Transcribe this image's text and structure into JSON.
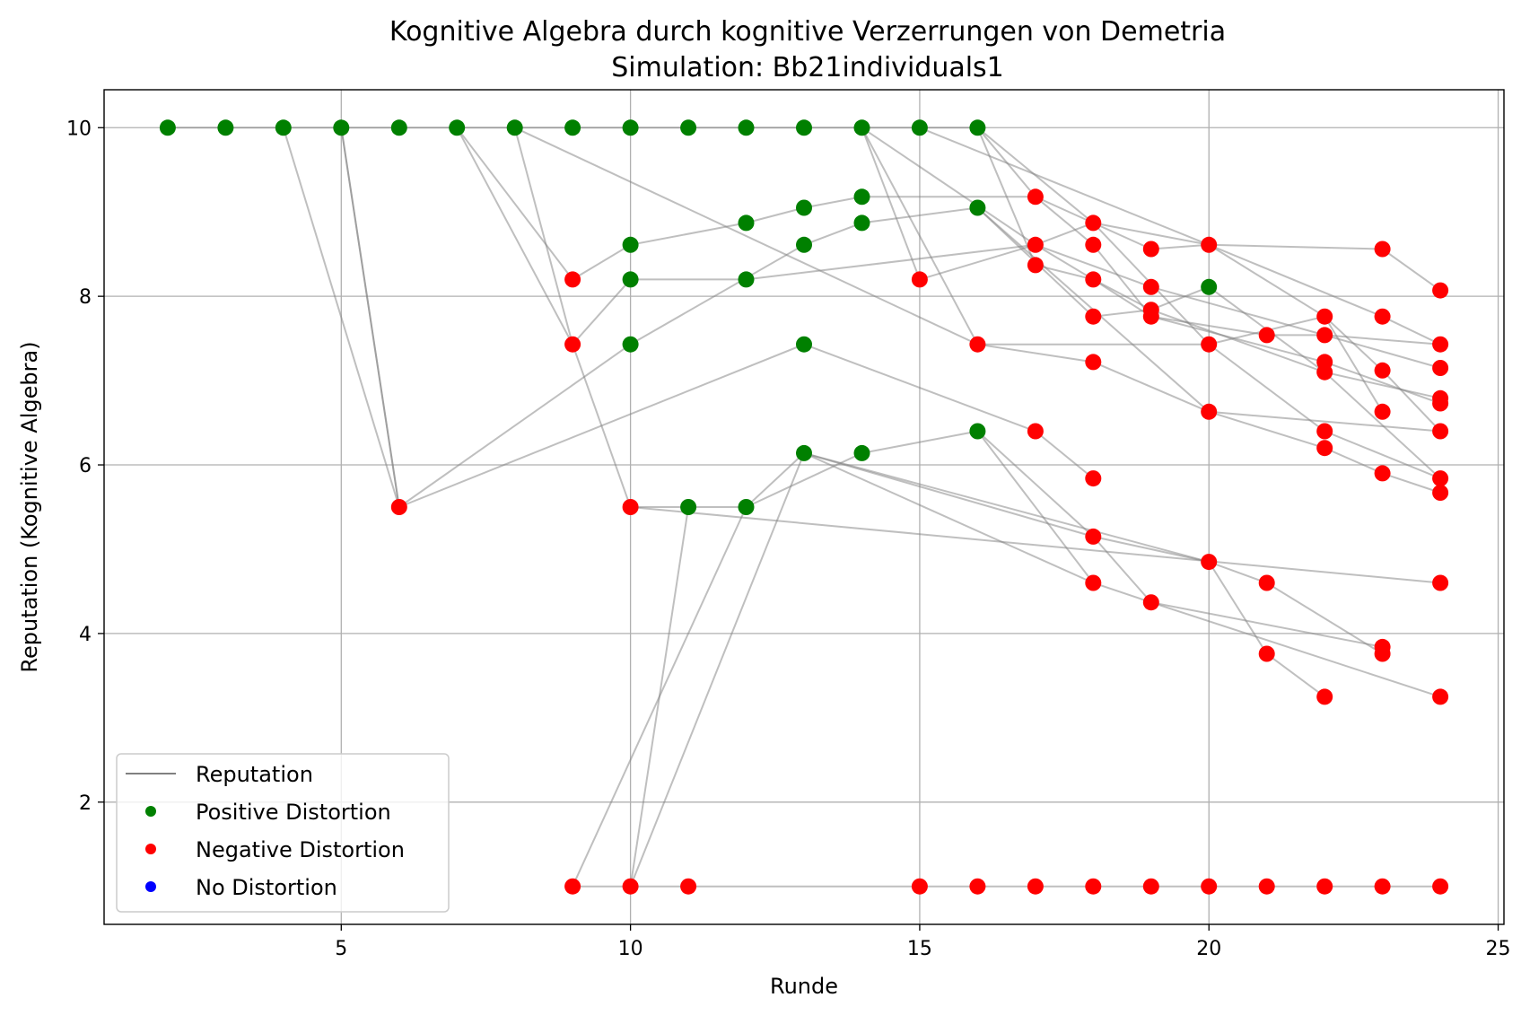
{
  "chart_data": {
    "type": "scatter",
    "title": "Kognitive Algebra durch kognitive Verzerrungen von Demetria",
    "subtitle": "Simulation: Bb21individuals1",
    "xlabel": "Runde",
    "ylabel": "Reputation (Kognitive Algebra)",
    "xlim": [
      0.9,
      25.1
    ],
    "ylim": [
      0.55,
      10.45
    ],
    "xticks": [
      5,
      10,
      15,
      20,
      25
    ],
    "yticks": [
      2,
      4,
      6,
      8,
      10
    ],
    "grid": true,
    "legend_position": "lower-left",
    "legend": [
      {
        "label": "Reputation",
        "kind": "line",
        "color": "#808080"
      },
      {
        "label": "Positive Distortion",
        "kind": "marker",
        "color": "#008000"
      },
      {
        "label": "Negative Distortion",
        "kind": "marker",
        "color": "#ff0000"
      },
      {
        "label": "No Distortion",
        "kind": "marker",
        "color": "#0000ff"
      }
    ],
    "colors": {
      "positive": "#008000",
      "negative": "#ff0000",
      "none": "#0000ff",
      "line": "#808080"
    },
    "points": [
      {
        "x": 2,
        "y": 10,
        "d": "positive"
      },
      {
        "x": 3,
        "y": 10,
        "d": "positive"
      },
      {
        "x": 4,
        "y": 10,
        "d": "positive"
      },
      {
        "x": 5,
        "y": 10,
        "d": "positive"
      },
      {
        "x": 6,
        "y": 10,
        "d": "positive"
      },
      {
        "x": 7,
        "y": 10,
        "d": "positive"
      },
      {
        "x": 8,
        "y": 10,
        "d": "positive"
      },
      {
        "x": 9,
        "y": 10,
        "d": "positive"
      },
      {
        "x": 10,
        "y": 10,
        "d": "positive"
      },
      {
        "x": 11,
        "y": 10,
        "d": "positive"
      },
      {
        "x": 12,
        "y": 10,
        "d": "positive"
      },
      {
        "x": 13,
        "y": 10,
        "d": "positive"
      },
      {
        "x": 14,
        "y": 10,
        "d": "positive"
      },
      {
        "x": 15,
        "y": 10,
        "d": "positive"
      },
      {
        "x": 16,
        "y": 10,
        "d": "positive"
      },
      {
        "x": 6,
        "y": 5.5,
        "d": "negative"
      },
      {
        "x": 9,
        "y": 8.2,
        "d": "negative"
      },
      {
        "x": 9,
        "y": 7.43,
        "d": "negative"
      },
      {
        "x": 9,
        "y": 1.0,
        "d": "negative"
      },
      {
        "x": 10,
        "y": 8.61,
        "d": "positive"
      },
      {
        "x": 10,
        "y": 8.2,
        "d": "positive"
      },
      {
        "x": 10,
        "y": 7.43,
        "d": "positive"
      },
      {
        "x": 10,
        "y": 5.5,
        "d": "negative"
      },
      {
        "x": 10,
        "y": 1.0,
        "d": "negative"
      },
      {
        "x": 11,
        "y": 5.5,
        "d": "positive"
      },
      {
        "x": 11,
        "y": 1.0,
        "d": "negative"
      },
      {
        "x": 12,
        "y": 8.87,
        "d": "positive"
      },
      {
        "x": 12,
        "y": 8.2,
        "d": "positive"
      },
      {
        "x": 12,
        "y": 5.5,
        "d": "positive"
      },
      {
        "x": 13,
        "y": 9.05,
        "d": "positive"
      },
      {
        "x": 13,
        "y": 8.61,
        "d": "positive"
      },
      {
        "x": 13,
        "y": 7.43,
        "d": "positive"
      },
      {
        "x": 13,
        "y": 6.14,
        "d": "positive"
      },
      {
        "x": 14,
        "y": 9.18,
        "d": "positive"
      },
      {
        "x": 14,
        "y": 8.87,
        "d": "positive"
      },
      {
        "x": 14,
        "y": 6.14,
        "d": "positive"
      },
      {
        "x": 15,
        "y": 8.2,
        "d": "negative"
      },
      {
        "x": 15,
        "y": 1.0,
        "d": "negative"
      },
      {
        "x": 16,
        "y": 9.05,
        "d": "positive"
      },
      {
        "x": 16,
        "y": 7.43,
        "d": "negative"
      },
      {
        "x": 16,
        "y": 6.4,
        "d": "positive"
      },
      {
        "x": 16,
        "y": 1.0,
        "d": "negative"
      },
      {
        "x": 17,
        "y": 9.18,
        "d": "negative"
      },
      {
        "x": 17,
        "y": 8.61,
        "d": "negative"
      },
      {
        "x": 17,
        "y": 8.37,
        "d": "negative"
      },
      {
        "x": 17,
        "y": 6.4,
        "d": "negative"
      },
      {
        "x": 17,
        "y": 1.0,
        "d": "negative"
      },
      {
        "x": 18,
        "y": 8.87,
        "d": "negative"
      },
      {
        "x": 18,
        "y": 8.61,
        "d": "negative"
      },
      {
        "x": 18,
        "y": 8.2,
        "d": "negative"
      },
      {
        "x": 18,
        "y": 7.76,
        "d": "negative"
      },
      {
        "x": 18,
        "y": 7.22,
        "d": "negative"
      },
      {
        "x": 18,
        "y": 5.84,
        "d": "negative"
      },
      {
        "x": 18,
        "y": 5.15,
        "d": "negative"
      },
      {
        "x": 18,
        "y": 4.6,
        "d": "negative"
      },
      {
        "x": 18,
        "y": 1.0,
        "d": "negative"
      },
      {
        "x": 19,
        "y": 8.56,
        "d": "negative"
      },
      {
        "x": 19,
        "y": 8.11,
        "d": "negative"
      },
      {
        "x": 19,
        "y": 7.84,
        "d": "negative"
      },
      {
        "x": 19,
        "y": 7.76,
        "d": "negative"
      },
      {
        "x": 19,
        "y": 4.37,
        "d": "negative"
      },
      {
        "x": 19,
        "y": 1.0,
        "d": "negative"
      },
      {
        "x": 20,
        "y": 8.61,
        "d": "negative"
      },
      {
        "x": 20,
        "y": 8.11,
        "d": "positive"
      },
      {
        "x": 20,
        "y": 7.43,
        "d": "negative"
      },
      {
        "x": 20,
        "y": 6.63,
        "d": "negative"
      },
      {
        "x": 20,
        "y": 4.85,
        "d": "negative"
      },
      {
        "x": 20,
        "y": 1.0,
        "d": "negative"
      },
      {
        "x": 21,
        "y": 7.54,
        "d": "negative"
      },
      {
        "x": 21,
        "y": 4.6,
        "d": "negative"
      },
      {
        "x": 21,
        "y": 3.76,
        "d": "negative"
      },
      {
        "x": 21,
        "y": 1.0,
        "d": "negative"
      },
      {
        "x": 22,
        "y": 7.76,
        "d": "negative"
      },
      {
        "x": 22,
        "y": 7.54,
        "d": "negative"
      },
      {
        "x": 22,
        "y": 7.22,
        "d": "negative"
      },
      {
        "x": 22,
        "y": 7.1,
        "d": "negative"
      },
      {
        "x": 22,
        "y": 6.4,
        "d": "negative"
      },
      {
        "x": 22,
        "y": 6.2,
        "d": "negative"
      },
      {
        "x": 22,
        "y": 3.25,
        "d": "negative"
      },
      {
        "x": 22,
        "y": 1.0,
        "d": "negative"
      },
      {
        "x": 23,
        "y": 8.56,
        "d": "negative"
      },
      {
        "x": 23,
        "y": 7.76,
        "d": "negative"
      },
      {
        "x": 23,
        "y": 7.12,
        "d": "negative"
      },
      {
        "x": 23,
        "y": 6.63,
        "d": "negative"
      },
      {
        "x": 23,
        "y": 5.9,
        "d": "negative"
      },
      {
        "x": 23,
        "y": 3.84,
        "d": "negative"
      },
      {
        "x": 23,
        "y": 3.76,
        "d": "negative"
      },
      {
        "x": 23,
        "y": 1.0,
        "d": "negative"
      },
      {
        "x": 24,
        "y": 8.07,
        "d": "negative"
      },
      {
        "x": 24,
        "y": 7.43,
        "d": "negative"
      },
      {
        "x": 24,
        "y": 7.15,
        "d": "negative"
      },
      {
        "x": 24,
        "y": 6.79,
        "d": "negative"
      },
      {
        "x": 24,
        "y": 6.73,
        "d": "negative"
      },
      {
        "x": 24,
        "y": 6.4,
        "d": "negative"
      },
      {
        "x": 24,
        "y": 5.84,
        "d": "negative"
      },
      {
        "x": 24,
        "y": 5.67,
        "d": "negative"
      },
      {
        "x": 24,
        "y": 4.6,
        "d": "negative"
      },
      {
        "x": 24,
        "y": 3.25,
        "d": "negative"
      },
      {
        "x": 24,
        "y": 1.0,
        "d": "negative"
      }
    ],
    "reputation_lines": [
      [
        [
          2,
          10
        ],
        [
          16,
          10
        ]
      ],
      [
        [
          4,
          10
        ],
        [
          6,
          5.5
        ],
        [
          10,
          7.43
        ],
        [
          13,
          8.61
        ],
        [
          14,
          8.87
        ],
        [
          16,
          9.05
        ],
        [
          18,
          7.76
        ],
        [
          19,
          7.84
        ],
        [
          20,
          8.11
        ],
        [
          22,
          7.1
        ],
        [
          24,
          6.79
        ]
      ],
      [
        [
          5,
          10
        ],
        [
          6,
          5.5
        ],
        [
          13,
          7.43
        ],
        [
          17,
          6.4
        ],
        [
          18,
          5.84
        ]
      ],
      [
        [
          5,
          10
        ],
        [
          6,
          5.5
        ]
      ],
      [
        [
          7,
          10
        ],
        [
          9,
          8.2
        ],
        [
          10,
          8.61
        ],
        [
          12,
          8.87
        ],
        [
          13,
          9.05
        ],
        [
          14,
          9.18
        ],
        [
          17,
          9.18
        ],
        [
          18,
          8.61
        ],
        [
          19,
          7.76
        ],
        [
          22,
          7.22
        ],
        [
          24,
          6.73
        ]
      ],
      [
        [
          7,
          10
        ],
        [
          9,
          7.43
        ],
        [
          10,
          8.2
        ],
        [
          12,
          8.2
        ],
        [
          17,
          8.61
        ],
        [
          18,
          8.2
        ],
        [
          19,
          7.84
        ],
        [
          22,
          7.1
        ],
        [
          24,
          5.84
        ]
      ],
      [
        [
          8,
          10
        ],
        [
          9,
          7.43
        ],
        [
          10,
          5.5
        ],
        [
          11,
          5.5
        ],
        [
          12,
          5.5
        ],
        [
          13,
          6.14
        ],
        [
          18,
          5.15
        ],
        [
          19,
          4.37
        ],
        [
          23,
          3.84
        ]
      ],
      [
        [
          8,
          10
        ],
        [
          16,
          7.43
        ],
        [
          18,
          7.22
        ],
        [
          20,
          6.63
        ],
        [
          22,
          6.2
        ],
        [
          23,
          5.9
        ],
        [
          24,
          5.67
        ]
      ],
      [
        [
          9,
          1.0
        ],
        [
          12,
          5.5
        ]
      ],
      [
        [
          10,
          1.0
        ],
        [
          11,
          5.5
        ]
      ],
      [
        [
          10,
          1.0
        ],
        [
          13,
          6.14
        ],
        [
          18,
          4.6
        ],
        [
          19,
          4.37
        ],
        [
          24,
          3.25
        ]
      ],
      [
        [
          10,
          5.5
        ],
        [
          24,
          4.6
        ]
      ],
      [
        [
          9,
          1.0
        ],
        [
          24,
          1.0
        ]
      ],
      [
        [
          12,
          5.5
        ],
        [
          14,
          6.14
        ],
        [
          16,
          6.4
        ],
        [
          18,
          4.6
        ]
      ],
      [
        [
          13,
          6.14
        ],
        [
          20,
          4.85
        ],
        [
          21,
          4.6
        ],
        [
          23,
          3.76
        ]
      ],
      [
        [
          14,
          10
        ],
        [
          15,
          8.2
        ],
        [
          17,
          8.61
        ],
        [
          18,
          8.87
        ],
        [
          19,
          8.56
        ],
        [
          20,
          8.61
        ],
        [
          23,
          8.56
        ],
        [
          24,
          8.07
        ]
      ],
      [
        [
          14,
          10
        ],
        [
          17,
          8.61
        ],
        [
          19,
          8.11
        ],
        [
          22,
          7.54
        ],
        [
          24,
          7.15
        ]
      ],
      [
        [
          14,
          10
        ],
        [
          16,
          7.43
        ],
        [
          20,
          7.43
        ],
        [
          22,
          6.4
        ],
        [
          24,
          5.84
        ]
      ],
      [
        [
          15,
          10
        ],
        [
          20,
          8.61
        ],
        [
          22,
          7.76
        ],
        [
          23,
          7.12
        ],
        [
          24,
          6.4
        ]
      ],
      [
        [
          16,
          10
        ],
        [
          17,
          8.37
        ],
        [
          18,
          8.2
        ],
        [
          19,
          7.76
        ],
        [
          21,
          7.54
        ],
        [
          22,
          7.54
        ],
        [
          24,
          7.43
        ]
      ],
      [
        [
          16,
          10
        ],
        [
          18,
          8.87
        ],
        [
          20,
          8.61
        ],
        [
          23,
          7.76
        ],
        [
          24,
          7.43
        ]
      ],
      [
        [
          16,
          10
        ],
        [
          17,
          9.18
        ],
        [
          18,
          8.87
        ],
        [
          20,
          7.43
        ],
        [
          22,
          7.76
        ],
        [
          23,
          6.63
        ]
      ],
      [
        [
          16,
          9.05
        ],
        [
          20,
          6.63
        ],
        [
          24,
          6.4
        ]
      ],
      [
        [
          16,
          6.4
        ],
        [
          18,
          5.15
        ],
        [
          20,
          4.85
        ],
        [
          21,
          3.76
        ],
        [
          22,
          3.25
        ]
      ]
    ]
  }
}
